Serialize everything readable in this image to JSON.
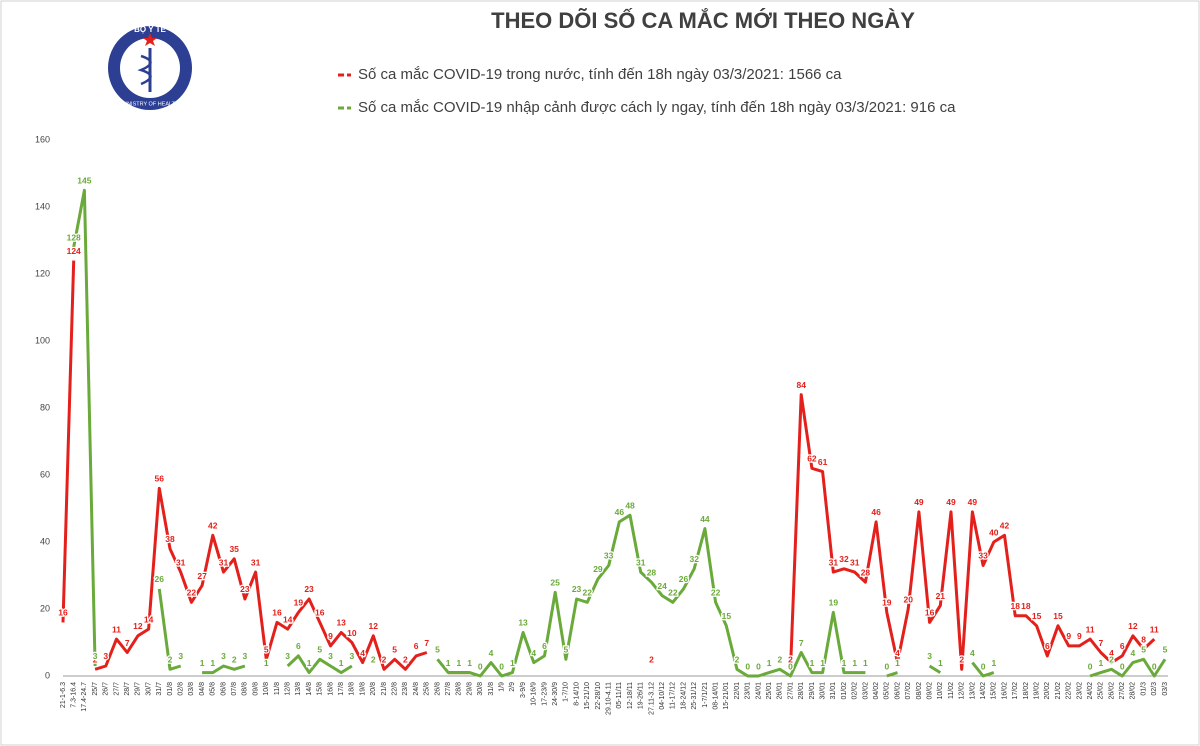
{
  "logo": {
    "top": "BỘ Y TẾ",
    "bottom": "MINISTRY OF HEALTH"
  },
  "chart_data": {
    "type": "line",
    "title": "THEO DÕI SỐ CA MẮC MỚI THEO NGÀY",
    "categories": [
      "21-1-6.3",
      "7.3-16.4",
      "17.4-24.7",
      "25/7",
      "26/7",
      "27/7",
      "28/7",
      "29/7",
      "30/7",
      "31/7",
      "01/8",
      "02/8",
      "03/8",
      "04/8",
      "05/8",
      "06/8",
      "07/8",
      "08/8",
      "09/8",
      "10/8",
      "11/8",
      "12/8",
      "13/8",
      "14/8",
      "15/8",
      "16/8",
      "17/8",
      "18/8",
      "19/8",
      "20/8",
      "21/8",
      "22/8",
      "23/8",
      "24/8",
      "25/8",
      "26/8",
      "27/8",
      "28/8",
      "29/8",
      "30/8",
      "31/8",
      "1/9",
      "2/9",
      "3-9/9",
      "10-16/9",
      "17-23/9",
      "24-30/9",
      "1-7/10",
      "8-14/10",
      "15-21/10",
      "22-28/10",
      "29.10-4.11",
      "05-11/11",
      "12-18/11",
      "19-26/11",
      "27.11-3.12",
      "04-10/12",
      "11-17/12",
      "18-24/12",
      "25-31/12",
      "1-7/1/21",
      "08-14/01",
      "15-21/01",
      "22/01",
      "23/01",
      "24/01",
      "25/01",
      "26/01",
      "27/01",
      "28/01",
      "29/01",
      "30/01",
      "31/01",
      "01/02",
      "02/02",
      "03/02",
      "04/02",
      "05/02",
      "06/02",
      "07/02",
      "08/02",
      "09/02",
      "10/02",
      "11/02",
      "12/02",
      "13/02",
      "14/02",
      "15/02",
      "16/02",
      "17/02",
      "18/02",
      "19/02",
      "20/02",
      "21/02",
      "22/02",
      "23/02",
      "24/02",
      "25/02",
      "26/02",
      "27/02",
      "28/02",
      "01/3",
      "02/3",
      "03/3"
    ],
    "series": [
      {
        "name": "Số ca mắc COVID-19 trong nước, tính đến 18h ngày 03/3/2021: 1566 ca",
        "color": "#e3201b",
        "values": [
          16,
          124,
          null,
          2,
          3,
          11,
          7,
          12,
          14,
          56,
          38,
          31,
          22,
          27,
          42,
          31,
          35,
          23,
          31,
          5,
          16,
          14,
          19,
          23,
          16,
          9,
          13,
          10,
          4,
          12,
          2,
          5,
          2,
          6,
          7,
          null,
          1,
          1,
          1,
          null,
          null,
          null,
          1,
          null,
          null,
          null,
          null,
          null,
          null,
          null,
          null,
          null,
          null,
          null,
          null,
          2,
          null,
          null,
          null,
          null,
          null,
          null,
          null,
          null,
          null,
          null,
          null,
          null,
          2,
          84,
          62,
          61,
          31,
          32,
          31,
          28,
          46,
          19,
          4,
          20,
          49,
          16,
          21,
          49,
          2,
          49,
          33,
          40,
          42,
          18,
          18,
          15,
          6,
          15,
          9,
          9,
          11,
          7,
          4,
          6,
          12,
          8,
          11,
          null
        ]
      },
      {
        "name": "Số ca mắc COVID-19 nhập cảnh được cách ly ngay, tính đến 18h ngày 03/3/2021: 916 ca",
        "color": "#6aaa3a",
        "values": [
          null,
          128,
          145,
          3,
          null,
          null,
          null,
          null,
          null,
          26,
          2,
          3,
          null,
          1,
          1,
          3,
          2,
          3,
          null,
          1,
          null,
          3,
          6,
          1,
          5,
          3,
          1,
          3,
          null,
          2,
          null,
          null,
          null,
          null,
          null,
          5,
          1,
          1,
          1,
          0,
          4,
          0,
          1,
          13,
          4,
          6,
          25,
          5,
          23,
          22,
          29,
          33,
          46,
          48,
          31,
          28,
          24,
          22,
          26,
          32,
          44,
          22,
          15,
          2,
          0,
          0,
          1,
          2,
          0,
          7,
          1,
          1,
          19,
          1,
          1,
          1,
          null,
          0,
          1,
          null,
          null,
          3,
          1,
          null,
          null,
          4,
          0,
          1,
          null,
          null,
          null,
          null,
          null,
          null,
          null,
          null,
          0,
          1,
          2,
          0,
          4,
          5,
          0,
          5
        ]
      }
    ],
    "ylim": [
      0,
      160
    ],
    "yticks": [
      0,
      20,
      40,
      60,
      80,
      100,
      120,
      140,
      160
    ],
    "grid": false
  }
}
